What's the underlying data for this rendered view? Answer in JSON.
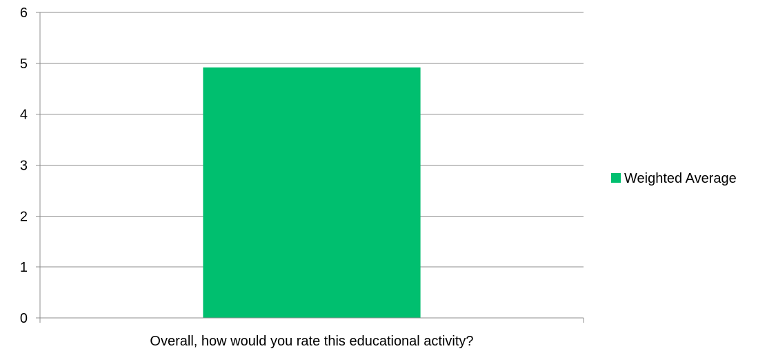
{
  "chart_data": {
    "type": "bar",
    "categories": [
      "Overall, how would you rate this educational activity?"
    ],
    "series": [
      {
        "name": "Weighted Average",
        "values": [
          4.92
        ],
        "color": "#00BF6F"
      }
    ],
    "ylim": [
      0,
      6
    ],
    "yticks": [
      "0",
      "1",
      "2",
      "3",
      "4",
      "5",
      "6"
    ],
    "grid": true,
    "legend_position": "right"
  }
}
